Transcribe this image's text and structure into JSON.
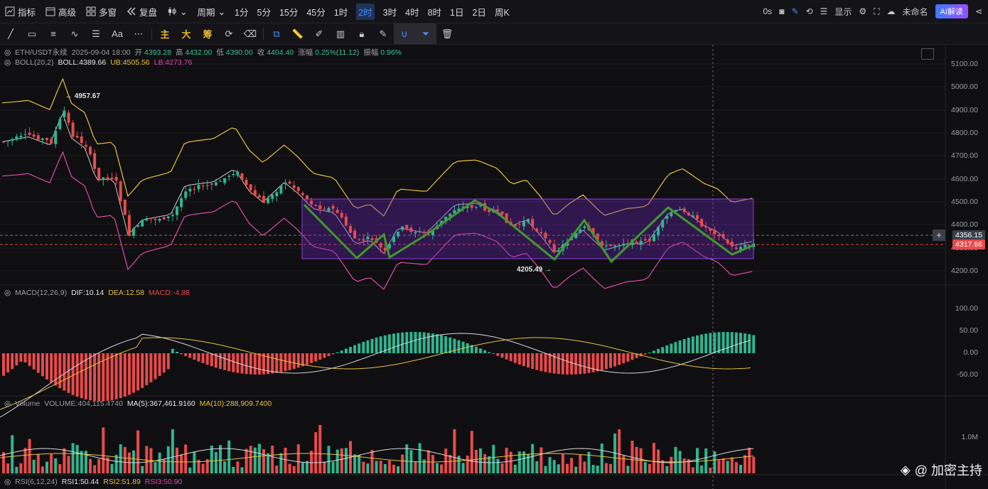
{
  "toolbar": {
    "items": [
      {
        "label": "指标",
        "icon": "indicator-icon"
      },
      {
        "label": "高级",
        "icon": "calendar-icon"
      },
      {
        "label": "多窗",
        "icon": "grid-icon"
      },
      {
        "label": "复盘",
        "icon": "rewind-icon"
      },
      {
        "label": "",
        "icon": "candle-type-icon"
      },
      {
        "label": "周期",
        "icon": ""
      }
    ],
    "periods": [
      "1分",
      "5分",
      "15分",
      "45分",
      "1时",
      "2时",
      "3时",
      "4时",
      "8时",
      "1日",
      "2日",
      "周K"
    ],
    "active_period": "2时",
    "timer": "0s",
    "display_label": "显示",
    "unnamed_label": "未命名",
    "ai_label": "AI解读"
  },
  "drawbar": {
    "text_tools": [
      "主",
      "大",
      "筹"
    ]
  },
  "legend": {
    "symbol": "ETH/USDT永续",
    "datetime": "2025-09-04 18:00",
    "open_k": "开",
    "open": "4393.28",
    "high_k": "高",
    "high": "4432.00",
    "low_k": "低",
    "low": "4390.00",
    "close_k": "收",
    "close": "4404.40",
    "chg_k": "涨幅",
    "chg": "0.25%(11.12)",
    "amp_k": "振幅",
    "amp": "0.96%"
  },
  "boll": {
    "name": "BOLL(20,2)",
    "mid": "BOLL:4389.66",
    "ub": "UB:4505.56",
    "lb": "LB:4273.76"
  },
  "macd": {
    "name": "MACD(12,26,9)",
    "dif": "DIF:10.14",
    "dea": "DEA:12.58",
    "macd": "MACD:-4.88"
  },
  "volume": {
    "name": "Volume",
    "vol": "VOLUME:404,115.4740",
    "ma5": "MA(5):367,461.9160",
    "ma10": "MA(10):288,909.7400"
  },
  "rsi": {
    "name": "RSI(6,12,24)",
    "r1": "RSI1:50.44",
    "r2": "RSI2:51.89",
    "r3": "RSI3:50.90"
  },
  "price_axis": [
    "5100.00",
    "5000.00",
    "4900.00",
    "4800.00",
    "4700.00",
    "4600.00",
    "4500.00",
    "4400.00",
    "4300.00",
    "4200.00"
  ],
  "macd_axis": [
    "100.00",
    "50.00",
    "0.00",
    "-50.00"
  ],
  "volume_axis": [
    "1.0M"
  ],
  "crosshair_price": "4356.15",
  "last_price": "4317.66",
  "high_mark": "4957.67",
  "low_mark": "4205.49",
  "watermark": "@ 加密主持",
  "colors": {
    "up": "#2fb58f",
    "down": "#e94a4a",
    "boll_mid": "#c9c9d0",
    "boll_ub": "#e8c23a",
    "boll_lb": "#e04aa7",
    "zigzag": "#3f9a2a",
    "box": "#6a2bb0"
  }
}
